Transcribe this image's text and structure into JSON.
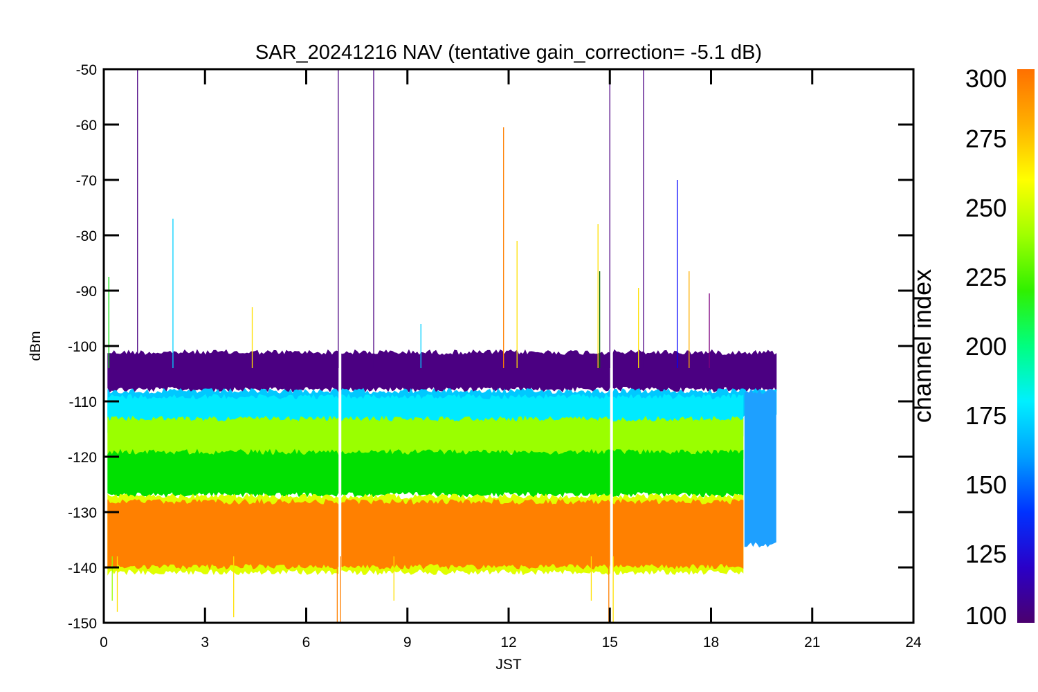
{
  "chart_data": {
    "type": "line",
    "title": "SAR_20241216 NAV (tentative gain_correction= -5.1 dB)",
    "xlabel": "JST",
    "ylabel": "dBm",
    "xlim": [
      0,
      24
    ],
    "ylim": [
      -150,
      -50
    ],
    "x_ticks": [
      0,
      3,
      6,
      9,
      12,
      15,
      18,
      21,
      24
    ],
    "x_tick_labels": [
      "0",
      "3",
      "6",
      "9",
      "12",
      "15",
      "18",
      "21",
      "24"
    ],
    "y_ticks": [
      -50,
      -60,
      -70,
      -80,
      -90,
      -100,
      -110,
      -120,
      -130,
      -140,
      -150
    ],
    "y_tick_labels": [
      "-50",
      "-60",
      "-70",
      "-80",
      "-90",
      "-100",
      "-110",
      "-120",
      "-130",
      "-140",
      "-150"
    ],
    "grid": false,
    "colorbar": {
      "label": "channel index",
      "range": [
        100,
        300
      ],
      "ticks": [
        300,
        275,
        250,
        225,
        200,
        175,
        150,
        125,
        100
      ],
      "tick_labels": [
        "300",
        "275",
        "250",
        "225",
        "200",
        "175",
        "150",
        "125",
        "100"
      ],
      "colormap": "rainbow",
      "stops": [
        "#4b006e",
        "#2a00c8",
        "#0032ff",
        "#00a0ff",
        "#00f0ff",
        "#00ff80",
        "#30f000",
        "#a0ff00",
        "#ffff00",
        "#ffb000",
        "#ff7000"
      ]
    },
    "gaps_x": [
      7.0,
      15.05
    ],
    "bands": [
      {
        "channel": 110,
        "color": "#4b0082",
        "x_start": 0.12,
        "x_end": 19.95,
        "y_low": -108,
        "y_high": -101
      },
      {
        "channel": 165,
        "color": "#00c8ff",
        "x_start": 0.12,
        "x_end": 19.95,
        "y_low": -113,
        "y_high": -108
      },
      {
        "channel": 145,
        "color": "#1ea0ff",
        "x_start": 19.0,
        "x_end": 19.95,
        "y_low": -136,
        "y_high": -108
      },
      {
        "channel": 175,
        "color": "#00eaff",
        "x_start": 0.12,
        "x_end": 19.0,
        "y_low": -116,
        "y_high": -109
      },
      {
        "channel": 250,
        "color": "#9aff00",
        "x_start": 0.12,
        "x_end": 19.0,
        "y_low": -120,
        "y_high": -113
      },
      {
        "channel": 225,
        "color": "#00e000",
        "x_start": 0.12,
        "x_end": 19.0,
        "y_low": -127,
        "y_high": -119
      },
      {
        "channel": 265,
        "color": "#e0ff00",
        "x_start": 0.12,
        "x_end": 19.0,
        "y_low": -141,
        "y_high": -127
      },
      {
        "channel": 290,
        "color": "#ff8000",
        "x_start": 0.12,
        "x_end": 19.0,
        "y_low": -140,
        "y_high": -128
      }
    ],
    "spikes": [
      {
        "x": 0.15,
        "y": -87.5,
        "color": "#00e000"
      },
      {
        "x": 1.0,
        "y": -50,
        "color": "#4b0082"
      },
      {
        "x": 2.05,
        "y": -77,
        "color": "#00d0ff"
      },
      {
        "x": 4.4,
        "y": -93,
        "color": "#ffe000"
      },
      {
        "x": 6.95,
        "y": -50,
        "color": "#4b0082"
      },
      {
        "x": 8.0,
        "y": -50,
        "color": "#4b0082"
      },
      {
        "x": 9.4,
        "y": -96,
        "color": "#00d0ff"
      },
      {
        "x": 11.85,
        "y": -60.5,
        "color": "#ff8000"
      },
      {
        "x": 12.25,
        "y": -81,
        "color": "#ffe000"
      },
      {
        "x": 14.65,
        "y": -78,
        "color": "#ffe000"
      },
      {
        "x": 14.7,
        "y": -86.5,
        "color": "#006400"
      },
      {
        "x": 15.0,
        "y": -50,
        "color": "#4b0082"
      },
      {
        "x": 15.85,
        "y": -89.5,
        "color": "#ffe000"
      },
      {
        "x": 16.0,
        "y": -50,
        "color": "#4b0082"
      },
      {
        "x": 17.0,
        "y": -70,
        "color": "#0000ff"
      },
      {
        "x": 17.35,
        "y": -86.5,
        "color": "#ffb000"
      },
      {
        "x": 17.95,
        "y": -90.5,
        "color": "#800080"
      }
    ],
    "down_spikes": [
      {
        "x": 0.25,
        "y": -146,
        "color": "#9aff00"
      },
      {
        "x": 0.4,
        "y": -148,
        "color": "#ffe000"
      },
      {
        "x": 3.85,
        "y": -149,
        "color": "#ffe000"
      },
      {
        "x": 6.92,
        "y": -150,
        "color": "#ff8000"
      },
      {
        "x": 7.02,
        "y": -150,
        "color": "#ff8000"
      },
      {
        "x": 8.6,
        "y": -146,
        "color": "#ffe000"
      },
      {
        "x": 14.45,
        "y": -146,
        "color": "#ffe000"
      },
      {
        "x": 14.97,
        "y": -150,
        "color": "#ff8000"
      },
      {
        "x": 15.1,
        "y": -150,
        "color": "#ffe000"
      }
    ]
  }
}
